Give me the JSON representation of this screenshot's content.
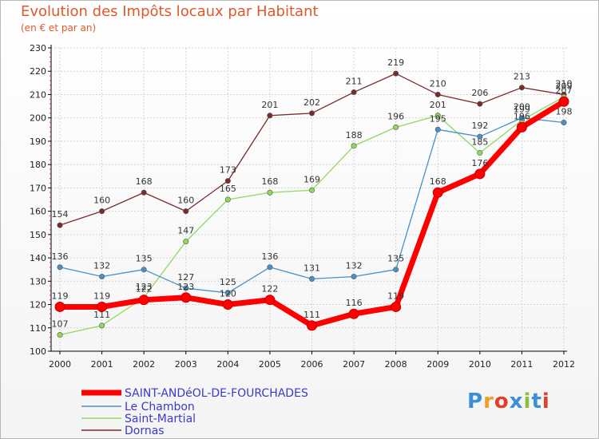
{
  "chart_data": {
    "type": "line",
    "title": "Evolution des Impôts locaux par Habitant",
    "subtitle": "(en € et par an)",
    "categories": [
      "2000",
      "2001",
      "2002",
      "2003",
      "2004",
      "2005",
      "2006",
      "2007",
      "2008",
      "2009",
      "2010",
      "2011",
      "2012"
    ],
    "ylim": [
      100,
      230
    ],
    "yticks": [
      100,
      110,
      120,
      130,
      140,
      150,
      160,
      170,
      180,
      190,
      200,
      210,
      220,
      230
    ],
    "grid": true,
    "legend_position": "bottom-left",
    "series": [
      {
        "name": "Dornas",
        "color": "#7a2a2a",
        "values": [
          154,
          160,
          168,
          160,
          173,
          201,
          202,
          211,
          219,
          210,
          206,
          213,
          210
        ],
        "labels": [
          "154",
          "160",
          "168",
          "160",
          "173",
          "201",
          "202",
          "211",
          "219",
          "210",
          "206",
          "213",
          "210"
        ]
      },
      {
        "name": "Saint-Martial",
        "color": "#90d860",
        "values": [
          107,
          111,
          123,
          147,
          165,
          168,
          169,
          188,
          196,
          201,
          185,
          199,
          209
        ],
        "labels": [
          "107",
          "111",
          "123",
          "147",
          "165",
          "168",
          "169",
          "188",
          "196",
          "201",
          "185",
          "199",
          "209"
        ]
      },
      {
        "name": "Le Chambon",
        "color": "#4a90c8",
        "values": [
          136,
          132,
          135,
          127,
          125,
          136,
          131,
          132,
          135,
          195,
          192,
          200,
          198
        ],
        "labels": [
          "136",
          "132",
          "135",
          "127",
          "125",
          "136",
          "131",
          "132",
          "135",
          "195",
          "192",
          "200",
          "198"
        ]
      },
      {
        "name": "SAINT-ANDéOL-DE-FOURCHADES",
        "color": "#ff0000",
        "values": [
          119,
          119,
          122,
          123,
          120,
          122,
          111,
          116,
          119,
          168,
          176,
          196,
          207
        ],
        "labels": [
          "119",
          "119",
          "122",
          "123",
          "120",
          "122",
          "111",
          "116",
          "119",
          "168",
          "176",
          "196",
          "207"
        ]
      }
    ],
    "legend_order": [
      "SAINT-ANDéOL-DE-FOURCHADES",
      "Le Chambon",
      "Saint-Martial",
      "Dornas"
    ]
  },
  "logo": {
    "letters": [
      "P",
      "r",
      "o",
      "x",
      "i",
      "t",
      "i"
    ],
    "colors": [
      "#3a8fd8",
      "#f0a020",
      "#e0402a",
      "#3a8fd8",
      "#8ac040",
      "#3a8fd8",
      "#e0402a"
    ]
  }
}
